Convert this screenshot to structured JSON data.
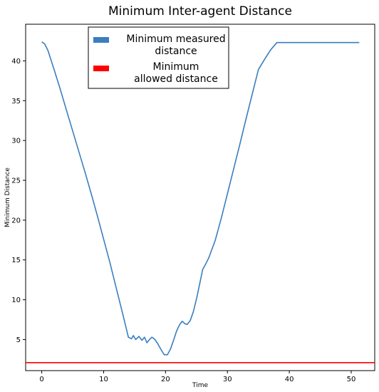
{
  "chart_data": {
    "type": "line",
    "title": "Minimum Inter-agent Distance",
    "xlabel": "Time",
    "ylabel": "Minimum Distance",
    "xlim": [
      -2.6,
      53.8
    ],
    "ylim": [
      1.1,
      44.6
    ],
    "xticks": [
      0,
      10,
      20,
      30,
      40,
      50
    ],
    "yticks": [
      5,
      10,
      15,
      20,
      25,
      30,
      35,
      40
    ],
    "grid": false,
    "legend_position": "top-center",
    "series": [
      {
        "name": "Minimum measured distance",
        "color": "#3a7ebf",
        "x": [
          0,
          0.5,
          1,
          2,
          3,
          4,
          5,
          6,
          7,
          8,
          9,
          10,
          11,
          12,
          13,
          14,
          14.5,
          14.8,
          15.2,
          15.7,
          16.2,
          16.6,
          17,
          17.4,
          17.8,
          18.3,
          18.8,
          19.3,
          19.8,
          20.3,
          20.8,
          21.3,
          21.8,
          22.3,
          22.7,
          23.1,
          23.5,
          24,
          24.5,
          25,
          25.5,
          26,
          26.5,
          27,
          28,
          29,
          30,
          31,
          32,
          33,
          34,
          35,
          36,
          37,
          38,
          38.5,
          39,
          40,
          45,
          51.3
        ],
        "y": [
          42.4,
          42.1,
          41.3,
          38.9,
          36.4,
          33.8,
          31.2,
          28.6,
          26.0,
          23.3,
          20.5,
          17.6,
          14.7,
          11.6,
          8.5,
          5.3,
          5.1,
          5.5,
          5.0,
          5.4,
          4.9,
          5.3,
          4.6,
          5.0,
          5.3,
          5.0,
          4.4,
          3.7,
          3.1,
          3.1,
          3.8,
          4.9,
          6.1,
          6.9,
          7.3,
          7.0,
          6.9,
          7.4,
          8.5,
          10.1,
          11.9,
          13.8,
          14.5,
          15.3,
          17.4,
          20.2,
          23.3,
          26.4,
          29.5,
          32.7,
          35.8,
          38.9,
          40.2,
          41.4,
          42.3,
          42.3,
          42.3,
          42.3,
          42.3,
          42.3
        ]
      },
      {
        "name": "Minimum allowed distance",
        "color": "#ff0000",
        "x": [
          -2.6,
          53.8
        ],
        "y": [
          2.1,
          2.1
        ]
      }
    ],
    "legend": [
      {
        "line1": "Minimum measured",
        "line2": "distance"
      },
      {
        "line1": "Minimum",
        "line2": "allowed distance"
      }
    ]
  }
}
